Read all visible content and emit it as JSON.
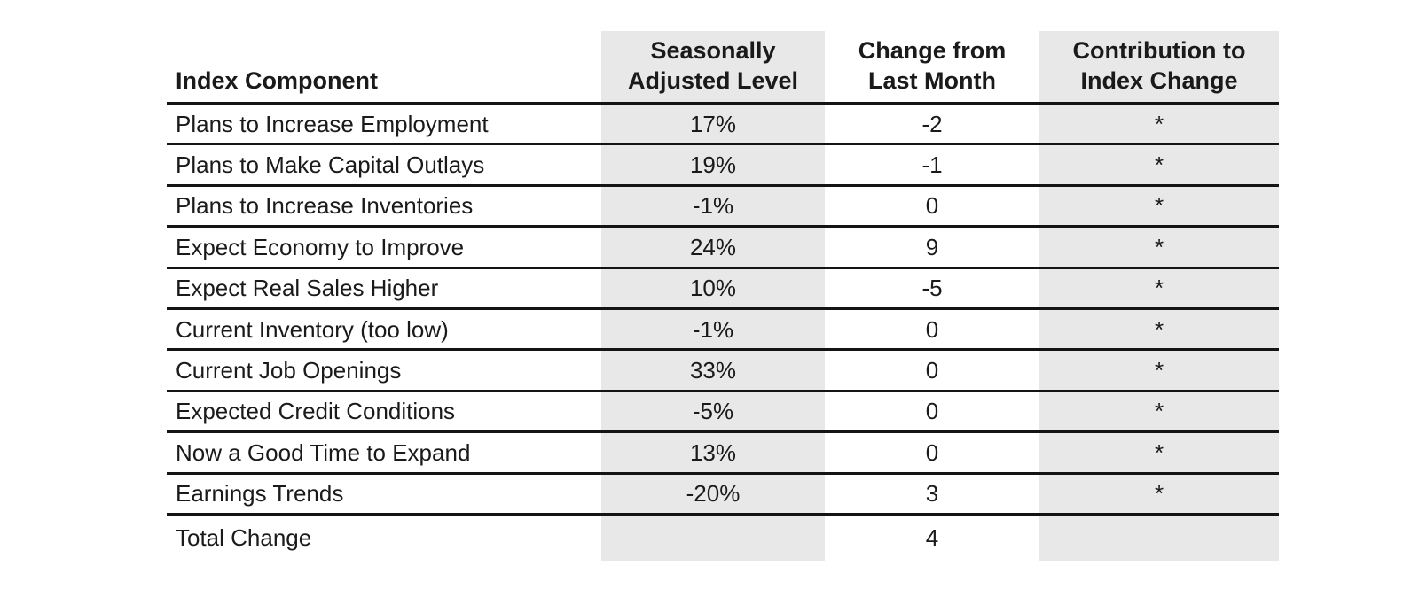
{
  "chart_data": {
    "type": "table",
    "title": "",
    "columns": [
      "Index Component",
      "Seasonally Adjusted Level",
      "Change from Last Month",
      "Contribution to Index Change"
    ],
    "rows": [
      [
        "Plans to Increase Employment",
        "17%",
        "-2",
        "*"
      ],
      [
        "Plans to Make Capital Outlays",
        "19%",
        "-1",
        "*"
      ],
      [
        "Plans to Increase Inventories",
        "-1%",
        "0",
        "*"
      ],
      [
        "Expect Economy to Improve",
        "24%",
        "9",
        "*"
      ],
      [
        "Expect Real Sales Higher",
        "10%",
        "-5",
        "*"
      ],
      [
        "Current Inventory (too low)",
        "-1%",
        "0",
        "*"
      ],
      [
        "Current Job Openings",
        "33%",
        "0",
        "*"
      ],
      [
        "Expected Credit Conditions",
        "-5%",
        "0",
        "*"
      ],
      [
        "Now a Good Time to Expand",
        "13%",
        "0",
        "*"
      ],
      [
        "Earnings Trends",
        "-20%",
        "3",
        "*"
      ],
      [
        "Total Change",
        "",
        "4",
        ""
      ]
    ]
  },
  "header": {
    "index_component": "Index Component",
    "seasonally_line1": "Seasonally",
    "seasonally_line2": "Adjusted Level",
    "change_line1": "Change from",
    "change_line2": "Last Month",
    "contribution_line1": "Contribution to",
    "contribution_line2": "Index Change"
  },
  "colors": {
    "background": "#ffffff",
    "stripe": "#e8e8e9",
    "rule": "#141414",
    "text": "#1a1a1a"
  }
}
